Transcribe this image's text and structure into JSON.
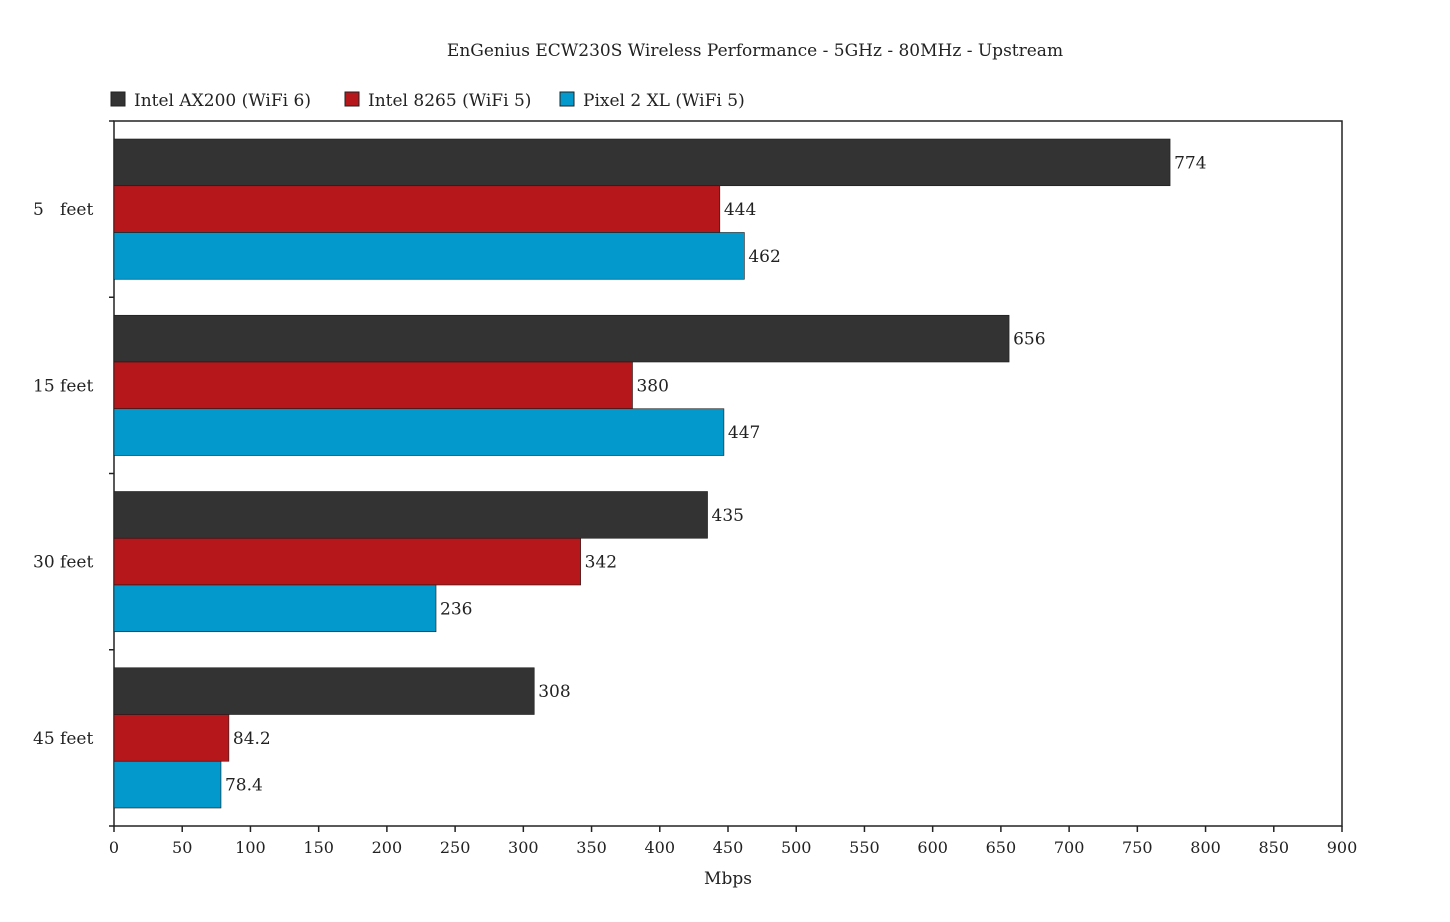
{
  "chart_data": {
    "type": "bar",
    "orientation": "horizontal",
    "title": "EnGenius ECW230S Wireless Performance - 5GHz - 80MHz - Upstream",
    "xlabel": "Mbps",
    "ylabel": "",
    "xlim": [
      0,
      900
    ],
    "xticks": [
      0,
      50,
      100,
      150,
      200,
      250,
      300,
      350,
      400,
      450,
      500,
      550,
      600,
      650,
      700,
      750,
      800,
      850,
      900
    ],
    "grid": false,
    "legend_position": "top-left",
    "categories": [
      "5   feet",
      "15 feet",
      "30 feet",
      "45 feet"
    ],
    "series": [
      {
        "name": "Intel AX200 (WiFi 6)",
        "color": "#333333",
        "values": [
          774,
          656,
          435,
          308
        ],
        "labels": [
          "774",
          "656",
          "435",
          "308"
        ]
      },
      {
        "name": "Intel 8265 (WiFi 5)",
        "color": "#b5171a",
        "values": [
          444,
          380,
          342,
          84.2
        ],
        "labels": [
          "444",
          "380",
          "342",
          "84.2"
        ]
      },
      {
        "name": "Pixel 2 XL (WiFi 5)",
        "color": "#0399cc",
        "values": [
          462,
          447,
          236,
          78.4
        ],
        "labels": [
          "462",
          "447",
          "236",
          "78.4"
        ]
      }
    ]
  }
}
